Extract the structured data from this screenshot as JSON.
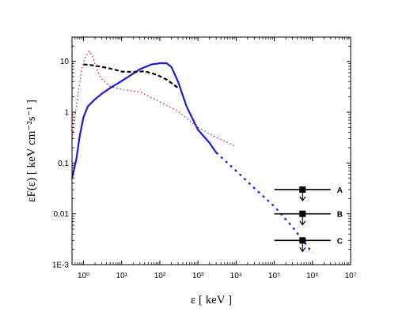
{
  "chart_data": {
    "type": "line",
    "title": "",
    "xlabel": "ε [ keV ]",
    "ylabel": "εF(ε) [ keV cm⁻²s⁻¹ ]",
    "xscale": "log",
    "yscale": "log",
    "xlim": [
      0.5,
      10000000
    ],
    "ylim": [
      0.001,
      30
    ],
    "x_tick_values": [
      1,
      10,
      100,
      1000,
      10000,
      100000,
      1000000,
      10000000
    ],
    "x_tick_labels": [
      "10⁰",
      "10¹",
      "10²",
      "10³",
      "10⁴",
      "10⁵",
      "10⁶",
      "10⁷"
    ],
    "y_tick_values": [
      0.001,
      0.01,
      0.1,
      1,
      10
    ],
    "y_tick_labels": [
      "1E-3",
      "0,01",
      "0,1",
      "1",
      "10"
    ],
    "grid": false,
    "colors": {
      "blue": "#1a1adb",
      "black": "#000000",
      "red": "#d42020"
    },
    "series": [
      {
        "style": "blue-solid",
        "x": [
          0.5,
          0.65,
          0.8,
          1.0,
          1.3,
          2,
          3,
          5,
          8,
          15,
          30,
          60,
          100,
          150,
          200,
          300,
          500,
          1000,
          2000,
          3000
        ],
        "y": [
          0.05,
          0.12,
          0.35,
          0.8,
          1.3,
          1.8,
          2.3,
          3.0,
          3.7,
          5.0,
          7.0,
          8.7,
          9.2,
          9.2,
          7.8,
          4.0,
          1.3,
          0.45,
          0.25,
          0.16
        ]
      },
      {
        "style": "blue-dotted",
        "x": [
          3000,
          10000,
          30000,
          100000,
          300000,
          1000000
        ],
        "y": [
          0.16,
          0.07,
          0.032,
          0.014,
          0.0055,
          0.0017
        ]
      },
      {
        "style": "black-dashed",
        "x": [
          1.0,
          1.5,
          2.5,
          4,
          6,
          10,
          20,
          40,
          80,
          150,
          300
        ],
        "y": [
          8.7,
          8.5,
          8.0,
          7.5,
          7.0,
          6.3,
          6.2,
          6.4,
          5.5,
          4.4,
          3.0
        ]
      },
      {
        "style": "red-dotted",
        "x": [
          0.5,
          0.7,
          0.9,
          1.1,
          1.4,
          1.7,
          2.2,
          3,
          5,
          10,
          30,
          100,
          300,
          1000,
          3000,
          10000
        ],
        "y": [
          0.3,
          2.0,
          7.0,
          12,
          16,
          13,
          7.0,
          4.5,
          3.2,
          2.8,
          2.5,
          1.6,
          1.05,
          0.5,
          0.32,
          0.21
        ]
      }
    ],
    "upper_limits": [
      {
        "label": "A",
        "x": 550000,
        "y": 0.03,
        "x_min": 100000,
        "x_max": 3000000
      },
      {
        "label": "B",
        "x": 550000,
        "y": 0.01,
        "x_min": 100000,
        "x_max": 3000000
      },
      {
        "label": "C",
        "x": 550000,
        "y": 0.003,
        "x_min": 100000,
        "x_max": 3000000
      }
    ]
  }
}
